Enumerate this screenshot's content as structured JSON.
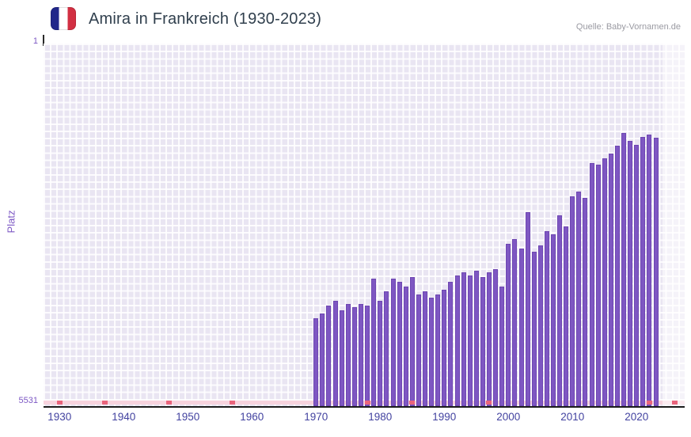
{
  "header": {
    "title": "Amira in Frankreich (1930-2023)",
    "source": "Quelle: Baby-Vornamen.de",
    "flag_icon": "france-flag-icon",
    "flag_colors": [
      "#21278a",
      "#ffffff",
      "#d22f42"
    ]
  },
  "chart_data": {
    "type": "bar",
    "title": "Amira in Frankreich (1930-2023)",
    "xlabel": "",
    "ylabel": "Platz",
    "y_axis": {
      "top_label": "1",
      "bottom_label": "5531",
      "min": 1,
      "max": 5531,
      "inverted": true
    },
    "x_ticks": [
      1930,
      1940,
      1950,
      1960,
      1970,
      1980,
      1990,
      2000,
      2010,
      2020
    ],
    "x_domain": [
      1927.5,
      2027.5
    ],
    "grid": true,
    "legend": "none",
    "bar_color": "#7e57c2",
    "plot_bg": "#e9e5f2",
    "no_data_strip_color": "#f7d3de",
    "no_data_mark_color": "#e9647c",
    "recent_band_start": 2024,
    "no_data_mark_years": [
      1930,
      1937,
      1947,
      1957,
      1978,
      1985,
      1997,
      2022,
      2026
    ],
    "years": [
      1970,
      1971,
      1972,
      1973,
      1974,
      1975,
      1976,
      1977,
      1978,
      1979,
      1980,
      1981,
      1982,
      1983,
      1984,
      1985,
      1986,
      1987,
      1988,
      1989,
      1990,
      1991,
      1992,
      1993,
      1994,
      1995,
      1996,
      1997,
      1998,
      1999,
      2000,
      2001,
      2002,
      2003,
      2004,
      2005,
      2006,
      2007,
      2008,
      2009,
      2010,
      2011,
      2012,
      2013,
      2014,
      2015,
      2016,
      2017,
      2018,
      2019,
      2020,
      2021,
      2022,
      2023
    ],
    "ranks": [
      4190,
      4120,
      4000,
      3925,
      4070,
      3975,
      4020,
      3975,
      4000,
      3590,
      3925,
      3780,
      3590,
      3635,
      3710,
      3565,
      3830,
      3780,
      3880,
      3830,
      3755,
      3635,
      3540,
      3490,
      3540,
      3465,
      3565,
      3490,
      3445,
      3710,
      3055,
      2985,
      3130,
      2575,
      3175,
      3080,
      2865,
      2910,
      2620,
      2790,
      2330,
      2260,
      2355,
      1825,
      1850,
      1750,
      1680,
      1560,
      1365,
      1480,
      1540,
      1430,
      1390,
      1440
    ]
  }
}
